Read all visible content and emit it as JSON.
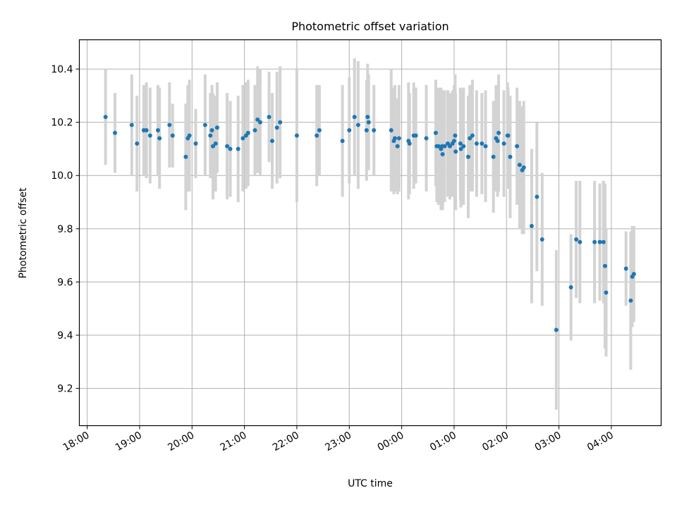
{
  "chart_data": {
    "type": "scatter",
    "title": "Photometric offset variation",
    "xlabel": "UTC time",
    "ylabel": "Photometric offset",
    "x_unit": "hours (UTC), values past 24:00 are after midnight",
    "x_tick_labels": [
      "18:00",
      "19:00",
      "20:00",
      "21:00",
      "22:00",
      "23:00",
      "00:00",
      "01:00",
      "02:00",
      "03:00",
      "04:00"
    ],
    "x_ticks": [
      18,
      19,
      20,
      21,
      22,
      23,
      24,
      25,
      26,
      27,
      28
    ],
    "xlim": [
      17.85,
      28.95
    ],
    "y_tick_labels": [
      "9.2",
      "9.4",
      "9.6",
      "9.8",
      "10.0",
      "10.2",
      "10.4"
    ],
    "y_ticks": [
      9.2,
      9.4,
      9.6,
      9.8,
      10.0,
      10.2,
      10.4
    ],
    "ylim": [
      9.06,
      10.51
    ],
    "grid": true,
    "colors": {
      "points": "#1f77b4",
      "error_bars": "#d3d3d3"
    },
    "series": [
      {
        "x": [
          18.35,
          18.53,
          18.85,
          18.95,
          19.08,
          19.13,
          19.2,
          19.35,
          19.38,
          19.57,
          19.63,
          19.88,
          19.92,
          19.95,
          20.07,
          20.25,
          20.35,
          20.38,
          20.4,
          20.45,
          20.48,
          20.67,
          20.73,
          20.88,
          20.97,
          21.03,
          21.07,
          21.2,
          21.25,
          21.3,
          21.47,
          21.53,
          21.62,
          21.68,
          22.0,
          22.38,
          22.43,
          22.87,
          23.0,
          23.1,
          23.17,
          23.33,
          23.35,
          23.37,
          23.47,
          23.8,
          23.85,
          23.87,
          23.92,
          23.95,
          24.13,
          24.15,
          24.23,
          24.27,
          24.47,
          24.65,
          24.67,
          24.7,
          24.75,
          24.77,
          24.78,
          24.82,
          24.88,
          24.92,
          24.97,
          25.0,
          25.02,
          25.03,
          25.12,
          25.13,
          25.18,
          25.27,
          25.3,
          25.35,
          25.43,
          25.53,
          25.6,
          25.75,
          25.8,
          25.83,
          25.85,
          25.95,
          26.02,
          26.03,
          26.07,
          26.2,
          26.25,
          26.3,
          26.33,
          26.48,
          26.58,
          26.68,
          26.95,
          27.23,
          27.33,
          27.4,
          27.68,
          27.78,
          27.85,
          27.88,
          27.9,
          28.28,
          28.37,
          28.4,
          28.43
        ],
        "y": [
          10.22,
          10.16,
          10.19,
          10.12,
          10.17,
          10.17,
          10.15,
          10.17,
          10.14,
          10.19,
          10.15,
          10.07,
          10.14,
          10.15,
          10.12,
          10.19,
          10.15,
          10.17,
          10.11,
          10.12,
          10.18,
          10.11,
          10.1,
          10.1,
          10.14,
          10.15,
          10.16,
          10.17,
          10.21,
          10.2,
          10.22,
          10.13,
          10.18,
          10.2,
          10.15,
          10.15,
          10.17,
          10.13,
          10.17,
          10.22,
          10.19,
          10.17,
          10.22,
          10.2,
          10.17,
          10.17,
          10.13,
          10.14,
          10.11,
          10.14,
          10.13,
          10.12,
          10.15,
          10.15,
          10.14,
          10.16,
          10.11,
          10.11,
          10.1,
          10.11,
          10.08,
          10.11,
          10.12,
          10.11,
          10.12,
          10.13,
          10.15,
          10.09,
          10.12,
          10.1,
          10.11,
          10.07,
          10.14,
          10.15,
          10.12,
          10.12,
          10.11,
          10.07,
          10.14,
          10.13,
          10.16,
          10.12,
          10.15,
          10.15,
          10.07,
          10.11,
          10.04,
          10.02,
          10.03,
          9.81,
          9.92,
          9.76,
          9.42,
          9.58,
          9.76,
          9.75,
          9.75,
          9.75,
          9.75,
          9.66,
          9.56,
          9.65,
          9.53,
          9.62,
          9.63
        ],
        "err": [
          0.18,
          0.15,
          0.19,
          0.18,
          0.17,
          0.18,
          0.18,
          0.17,
          0.19,
          0.16,
          0.12,
          0.2,
          0.2,
          0.21,
          0.13,
          0.19,
          0.16,
          0.17,
          0.2,
          0.18,
          0.17,
          0.2,
          0.18,
          0.2,
          0.2,
          0.2,
          0.2,
          0.17,
          0.2,
          0.2,
          0.17,
          0.18,
          0.21,
          0.21,
          0.25,
          0.19,
          0.17,
          0.21,
          0.2,
          0.22,
          0.24,
          0.19,
          0.2,
          0.18,
          0.17,
          0.23,
          0.2,
          0.2,
          0.18,
          0.2,
          0.22,
          0.19,
          0.2,
          0.18,
          0.2,
          0.2,
          0.21,
          0.22,
          0.23,
          0.21,
          0.21,
          0.21,
          0.2,
          0.2,
          0.2,
          0.21,
          0.23,
          0.22,
          0.21,
          0.22,
          0.22,
          0.23,
          0.2,
          0.21,
          0.2,
          0.19,
          0.21,
          0.21,
          0.2,
          0.21,
          0.22,
          0.2,
          0.2,
          0.18,
          0.23,
          0.22,
          0.24,
          0.24,
          0.25,
          0.29,
          0.28,
          0.25,
          0.3,
          0.2,
          0.22,
          0.23,
          0.23,
          0.22,
          0.23,
          0.31,
          0.24,
          0.14,
          0.26,
          0.19,
          0.18
        ]
      }
    ]
  }
}
